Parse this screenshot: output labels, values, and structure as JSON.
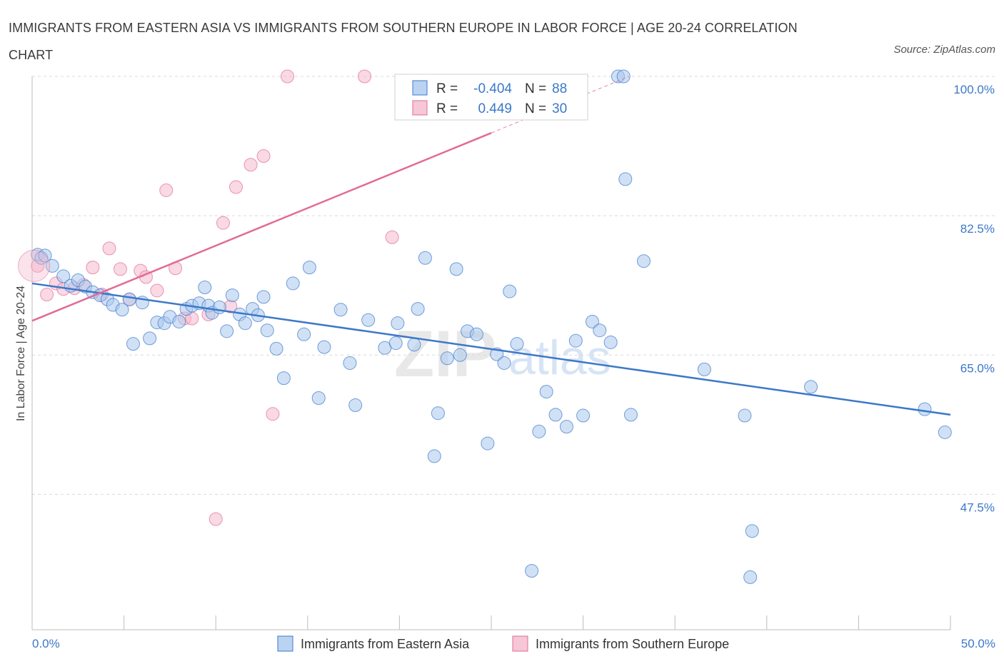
{
  "title": "IMMIGRANTS FROM EASTERN ASIA VS IMMIGRANTS FROM SOUTHERN EUROPE IN LABOR FORCE | AGE 20-24 CORRELATION CHART",
  "source": "Source: ZipAtlas.com",
  "watermark": {
    "zip": "ZIP",
    "atlas": "atlas"
  },
  "colors": {
    "blue": "#3b78c9",
    "blue_fill": "#a9c8ee",
    "pink": "#e26b96",
    "pink_fill": "#f4b9cc",
    "grid": "#d9d9d9"
  },
  "legend": {
    "r_label": "R =",
    "n_label": "N =",
    "rows": [
      {
        "r": "-0.404",
        "n": "88"
      },
      {
        "r": "0.449",
        "n": "30"
      }
    ]
  },
  "chart_data": {
    "type": "scatter",
    "title": "IMMIGRANTS FROM EASTERN ASIA VS IMMIGRANTS FROM SOUTHERN EUROPE IN LABOR FORCE | AGE 20-24 CORRELATION CHART",
    "xlabel": "",
    "ylabel": "In Labor Force | Age 20-24",
    "xlim": [
      0,
      50
    ],
    "ylim": [
      30.5,
      100
    ],
    "x_tick_labels": [
      "0.0%",
      "50.0%"
    ],
    "y_ticks": [
      47.5,
      65.0,
      82.5,
      100.0
    ],
    "y_tick_labels": [
      "47.5%",
      "65.0%",
      "82.5%",
      "100.0%"
    ],
    "grid": true,
    "legend_position": "bottom",
    "series": [
      {
        "name": "Immigrants from Eastern Asia",
        "color": "#3b78c9",
        "trend": {
          "x": [
            0,
            50
          ],
          "y": [
            74.0,
            57.5
          ]
        },
        "points": [
          [
            0.3,
            77.6
          ],
          [
            0.5,
            77.2
          ],
          [
            0.7,
            77.5
          ],
          [
            1.1,
            76.2
          ],
          [
            1.7,
            74.9
          ],
          [
            2.1,
            73.7
          ],
          [
            2.5,
            74.4
          ],
          [
            2.9,
            73.6
          ],
          [
            3.3,
            72.9
          ],
          [
            3.7,
            72.5
          ],
          [
            4.1,
            72.0
          ],
          [
            4.4,
            71.3
          ],
          [
            4.9,
            70.7
          ],
          [
            5.3,
            72.0
          ],
          [
            5.5,
            66.4
          ],
          [
            6.0,
            71.6
          ],
          [
            6.4,
            67.1
          ],
          [
            6.8,
            69.1
          ],
          [
            7.2,
            69.0
          ],
          [
            7.5,
            69.8
          ],
          [
            8.0,
            69.2
          ],
          [
            8.4,
            70.8
          ],
          [
            8.7,
            71.2
          ],
          [
            9.1,
            71.5
          ],
          [
            9.4,
            73.5
          ],
          [
            9.6,
            71.2
          ],
          [
            9.8,
            70.3
          ],
          [
            10.2,
            71.0
          ],
          [
            10.6,
            68.0
          ],
          [
            10.9,
            72.5
          ],
          [
            11.3,
            70.1
          ],
          [
            11.6,
            69.0
          ],
          [
            12.0,
            70.8
          ],
          [
            12.3,
            70.0
          ],
          [
            12.6,
            72.3
          ],
          [
            12.8,
            68.1
          ],
          [
            13.3,
            65.8
          ],
          [
            13.7,
            62.1
          ],
          [
            14.2,
            74.0
          ],
          [
            14.8,
            67.6
          ],
          [
            15.1,
            76.0
          ],
          [
            15.6,
            59.6
          ],
          [
            15.9,
            66.0
          ],
          [
            16.8,
            70.7
          ],
          [
            17.3,
            64.0
          ],
          [
            17.6,
            58.7
          ],
          [
            18.3,
            69.4
          ],
          [
            19.2,
            65.9
          ],
          [
            19.8,
            66.5
          ],
          [
            19.9,
            69.0
          ],
          [
            20.8,
            66.3
          ],
          [
            21.0,
            70.8
          ],
          [
            21.4,
            77.2
          ],
          [
            21.9,
            52.3
          ],
          [
            22.1,
            57.7
          ],
          [
            22.6,
            64.6
          ],
          [
            23.1,
            75.8
          ],
          [
            23.3,
            65.0
          ],
          [
            23.7,
            68.0
          ],
          [
            24.2,
            67.6
          ],
          [
            24.8,
            53.9
          ],
          [
            25.3,
            65.1
          ],
          [
            25.7,
            64.0
          ],
          [
            26.0,
            73.0
          ],
          [
            26.4,
            66.4
          ],
          [
            27.2,
            37.9
          ],
          [
            27.6,
            55.4
          ],
          [
            28.0,
            60.4
          ],
          [
            28.5,
            57.5
          ],
          [
            29.1,
            56.0
          ],
          [
            29.6,
            66.8
          ],
          [
            30.0,
            57.4
          ],
          [
            30.5,
            69.2
          ],
          [
            30.9,
            68.1
          ],
          [
            31.5,
            66.6
          ],
          [
            31.9,
            100.0
          ],
          [
            32.2,
            100.0
          ],
          [
            32.3,
            87.1
          ],
          [
            32.6,
            57.5
          ],
          [
            33.3,
            76.8
          ],
          [
            36.6,
            63.2
          ],
          [
            38.8,
            57.4
          ],
          [
            39.2,
            42.9
          ],
          [
            39.1,
            37.1
          ],
          [
            42.4,
            61.0
          ],
          [
            48.6,
            58.2
          ],
          [
            49.7,
            55.3
          ]
        ]
      },
      {
        "name": "Immigrants from Southern Europe",
        "color": "#e26b96",
        "trend": {
          "x": [
            0,
            25
          ],
          "y": [
            69.3,
            92.9
          ]
        },
        "points": [
          [
            0.3,
            76.2
          ],
          [
            0.8,
            72.6
          ],
          [
            1.3,
            74.0
          ],
          [
            1.7,
            73.3
          ],
          [
            2.3,
            73.4
          ],
          [
            2.8,
            73.8
          ],
          [
            3.3,
            76.0
          ],
          [
            3.8,
            72.6
          ],
          [
            4.2,
            78.4
          ],
          [
            4.8,
            75.8
          ],
          [
            5.3,
            72.0
          ],
          [
            5.9,
            75.6
          ],
          [
            6.2,
            74.8
          ],
          [
            6.8,
            73.1
          ],
          [
            7.3,
            85.7
          ],
          [
            7.8,
            75.9
          ],
          [
            8.3,
            69.6
          ],
          [
            8.7,
            69.6
          ],
          [
            9.6,
            70.1
          ],
          [
            10.0,
            44.4
          ],
          [
            10.4,
            81.6
          ],
          [
            10.8,
            71.1
          ],
          [
            11.1,
            86.1
          ],
          [
            11.9,
            88.9
          ],
          [
            12.6,
            90.0
          ],
          [
            13.1,
            57.6
          ],
          [
            13.9,
            100.0
          ],
          [
            18.1,
            100.0
          ],
          [
            19.6,
            79.8
          ]
        ]
      }
    ]
  }
}
